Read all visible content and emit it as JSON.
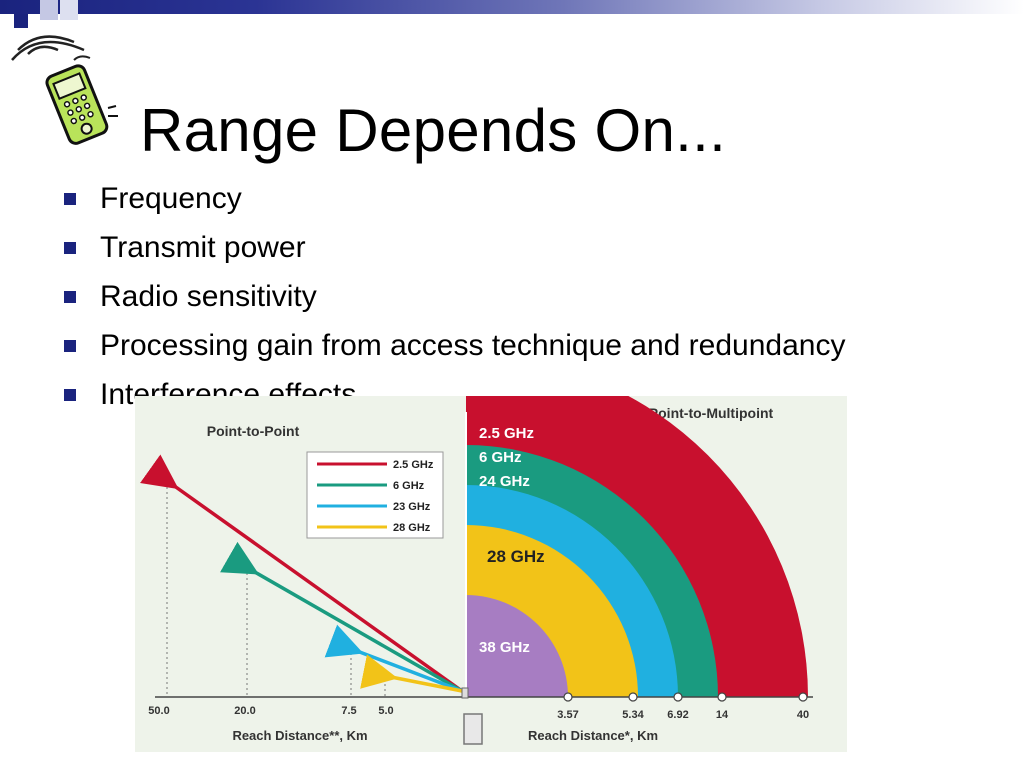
{
  "slide": {
    "title": "Range Depends On...",
    "bullets": [
      "Frequency",
      "Transmit power",
      "Radio sensitivity",
      "Processing gain from access technique and redundancy",
      "Interference effects"
    ]
  },
  "colors": {
    "accent": "#1a237e",
    "ghz_2_5": "#c8102e",
    "ghz_6": "#1a9b80",
    "ghz_23_24": "#20b0e0",
    "ghz_28": "#f2c318",
    "ghz_38": "#a77dc2"
  },
  "chart_data": [
    {
      "type": "line",
      "title": "Point-to-Point",
      "xlabel": "Reach Distance**, Km",
      "x_ticks": [
        "50.0",
        "20.0",
        "7.5",
        "5.0"
      ],
      "legend_position": "top-right",
      "series": [
        {
          "name": "2.5 GHz",
          "reach_km": 50.0,
          "color": "#c8102e"
        },
        {
          "name": "6 GHz",
          "reach_km": 20.0,
          "color": "#1a9b80"
        },
        {
          "name": "23 GHz",
          "reach_km": 7.5,
          "color": "#20b0e0"
        },
        {
          "name": "28 GHz",
          "reach_km": 5.0,
          "color": "#f2c318"
        }
      ]
    },
    {
      "type": "area",
      "title": "Point-to-Multipoint",
      "xlabel": "Reach Distance*, Km",
      "x_ticks": [
        "3.57",
        "5.34",
        "6.92",
        "14",
        "40"
      ],
      "series": [
        {
          "name": "2.5 GHz",
          "reach_km": 40,
          "color": "#c8102e"
        },
        {
          "name": "6 GHz",
          "reach_km": 14,
          "color": "#1a9b80"
        },
        {
          "name": "24 GHz",
          "reach_km": 6.92,
          "color": "#20b0e0"
        },
        {
          "name": "28 GHz",
          "reach_km": 5.34,
          "color": "#f2c318"
        },
        {
          "name": "38 GHz",
          "reach_km": 3.57,
          "color": "#a77dc2"
        }
      ]
    }
  ]
}
